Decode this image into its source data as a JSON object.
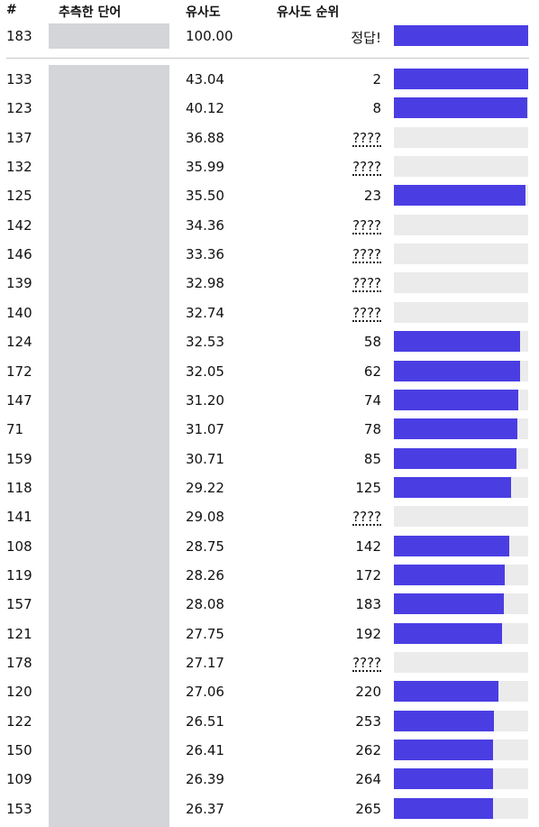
{
  "header": {
    "num": "#",
    "word": "추측한 단어",
    "similarity": "유사도",
    "rank": "유사도 순위"
  },
  "top_row": {
    "num": "183",
    "similarity": "100.00",
    "rank": "정답!",
    "progress": 1.0
  },
  "rows": [
    {
      "num": "133",
      "similarity": "43.04",
      "rank": "2",
      "progress": 0.998,
      "known": true
    },
    {
      "num": "123",
      "similarity": "40.12",
      "rank": "8",
      "progress": 0.992,
      "known": true
    },
    {
      "num": "137",
      "similarity": "36.88",
      "rank": "????",
      "progress": 0,
      "known": false
    },
    {
      "num": "132",
      "similarity": "35.99",
      "rank": "????",
      "progress": 0,
      "known": false
    },
    {
      "num": "125",
      "similarity": "35.50",
      "rank": "23",
      "progress": 0.977,
      "known": true
    },
    {
      "num": "142",
      "similarity": "34.36",
      "rank": "????",
      "progress": 0,
      "known": false
    },
    {
      "num": "146",
      "similarity": "33.36",
      "rank": "????",
      "progress": 0,
      "known": false
    },
    {
      "num": "139",
      "similarity": "32.98",
      "rank": "????",
      "progress": 0,
      "known": false
    },
    {
      "num": "140",
      "similarity": "32.74",
      "rank": "????",
      "progress": 0,
      "known": false
    },
    {
      "num": "124",
      "similarity": "32.53",
      "rank": "58",
      "progress": 0.942,
      "known": true
    },
    {
      "num": "172",
      "similarity": "32.05",
      "rank": "62",
      "progress": 0.938,
      "known": true
    },
    {
      "num": "147",
      "similarity": "31.20",
      "rank": "74",
      "progress": 0.926,
      "known": true
    },
    {
      "num": "71",
      "similarity": "31.07",
      "rank": "78",
      "progress": 0.922,
      "known": true
    },
    {
      "num": "159",
      "similarity": "30.71",
      "rank": "85",
      "progress": 0.915,
      "known": true
    },
    {
      "num": "118",
      "similarity": "29.22",
      "rank": "125",
      "progress": 0.875,
      "known": true
    },
    {
      "num": "141",
      "similarity": "29.08",
      "rank": "????",
      "progress": 0,
      "known": false
    },
    {
      "num": "108",
      "similarity": "28.75",
      "rank": "142",
      "progress": 0.858,
      "known": true
    },
    {
      "num": "119",
      "similarity": "28.26",
      "rank": "172",
      "progress": 0.828,
      "known": true
    },
    {
      "num": "157",
      "similarity": "28.08",
      "rank": "183",
      "progress": 0.817,
      "known": true
    },
    {
      "num": "121",
      "similarity": "27.75",
      "rank": "192",
      "progress": 0.808,
      "known": true
    },
    {
      "num": "178",
      "similarity": "27.17",
      "rank": "????",
      "progress": 0,
      "known": false
    },
    {
      "num": "120",
      "similarity": "27.06",
      "rank": "220",
      "progress": 0.78,
      "known": true
    },
    {
      "num": "122",
      "similarity": "26.51",
      "rank": "253",
      "progress": 0.747,
      "known": true
    },
    {
      "num": "150",
      "similarity": "26.41",
      "rank": "262",
      "progress": 0.738,
      "known": true
    },
    {
      "num": "109",
      "similarity": "26.39",
      "rank": "264",
      "progress": 0.736,
      "known": true
    },
    {
      "num": "153",
      "similarity": "26.37",
      "rank": "265",
      "progress": 0.735,
      "known": true
    }
  ],
  "colors": {
    "bar_fill": "#4a3ee3",
    "bar_track": "#ebebeb",
    "word_mask": "#d4d5d8"
  }
}
